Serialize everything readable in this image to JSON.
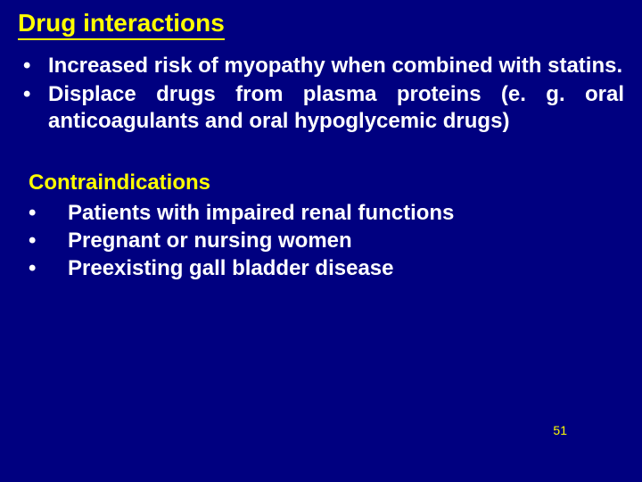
{
  "colors": {
    "background": "#000080",
    "heading": "#ffff00",
    "body_text": "#ffffff",
    "underline": "#ffff00",
    "page_number": "#ffff00"
  },
  "typography": {
    "heading1_fontsize": 28,
    "heading2_fontsize": 24,
    "body_fontsize": 24,
    "pagenum_fontsize": 14,
    "font_family": "Arial",
    "font_weight": "bold"
  },
  "heading1": "Drug interactions",
  "section1": {
    "items": [
      "Increased risk of myopathy when combined with statins.",
      "Displace drugs from plasma proteins (e. g. oral anticoagulants and oral hypoglycemic drugs)"
    ]
  },
  "heading2": "Contraindications",
  "section2": {
    "items": [
      "Patients with impaired renal functions",
      "Pregnant or nursing women",
      "Preexisting gall bladder disease"
    ]
  },
  "page_number": "51"
}
